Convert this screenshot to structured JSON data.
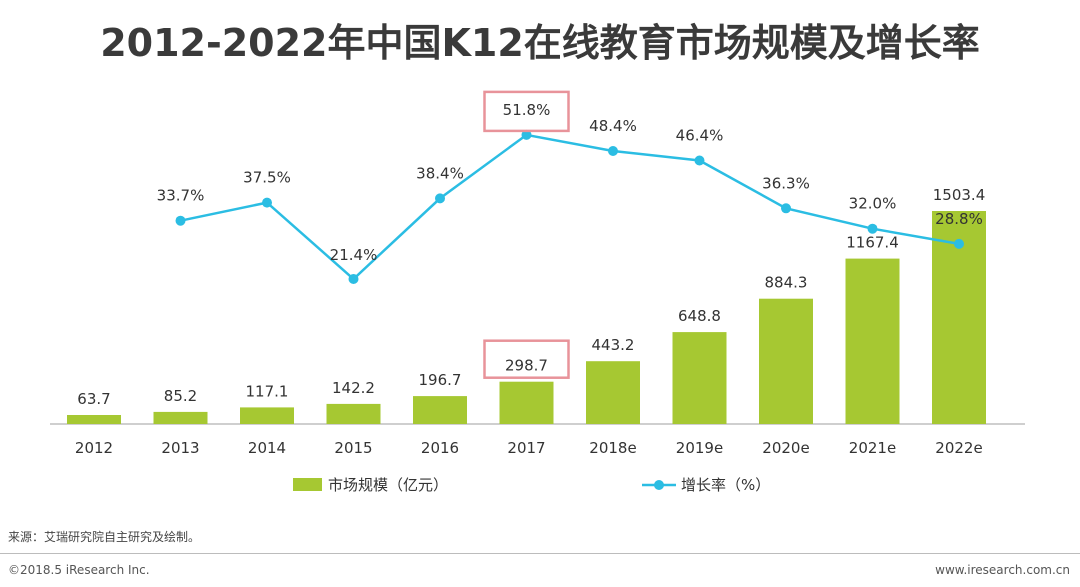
{
  "chart_data": {
    "type": "bar",
    "title": "2012-2022年中国K12在线教育市场规模及增长率",
    "categories": [
      "2012",
      "2013",
      "2014",
      "2015",
      "2016",
      "2017",
      "2018e",
      "2019e",
      "2020e",
      "2021e",
      "2022e"
    ],
    "series": [
      {
        "name": "市场规模（亿元）",
        "type": "bar",
        "color": "#a6c832",
        "values": [
          63.7,
          85.2,
          117.1,
          142.2,
          196.7,
          298.7,
          443.2,
          648.8,
          884.3,
          1167.4,
          1503.4
        ]
      },
      {
        "name": "增长率（%）",
        "type": "line",
        "color": "#2bbde3",
        "values": [
          null,
          33.7,
          37.5,
          21.4,
          38.4,
          51.8,
          48.4,
          46.4,
          36.3,
          32.0,
          28.8
        ],
        "labels": [
          null,
          "33.7%",
          "37.5%",
          "21.4%",
          "38.4%",
          "51.8%",
          "48.4%",
          "46.4%",
          "36.3%",
          "32.0%",
          "28.8%"
        ]
      }
    ],
    "highlight_category": "2017",
    "highlight_color": "#e8939a",
    "legend_position": "bottom",
    "grid": false
  },
  "footer": {
    "source": "来源：艾瑞研究院自主研究及绘制。",
    "copyright": "©2018.5 iResearch Inc.",
    "website": "www.iresearch.com.cn"
  }
}
